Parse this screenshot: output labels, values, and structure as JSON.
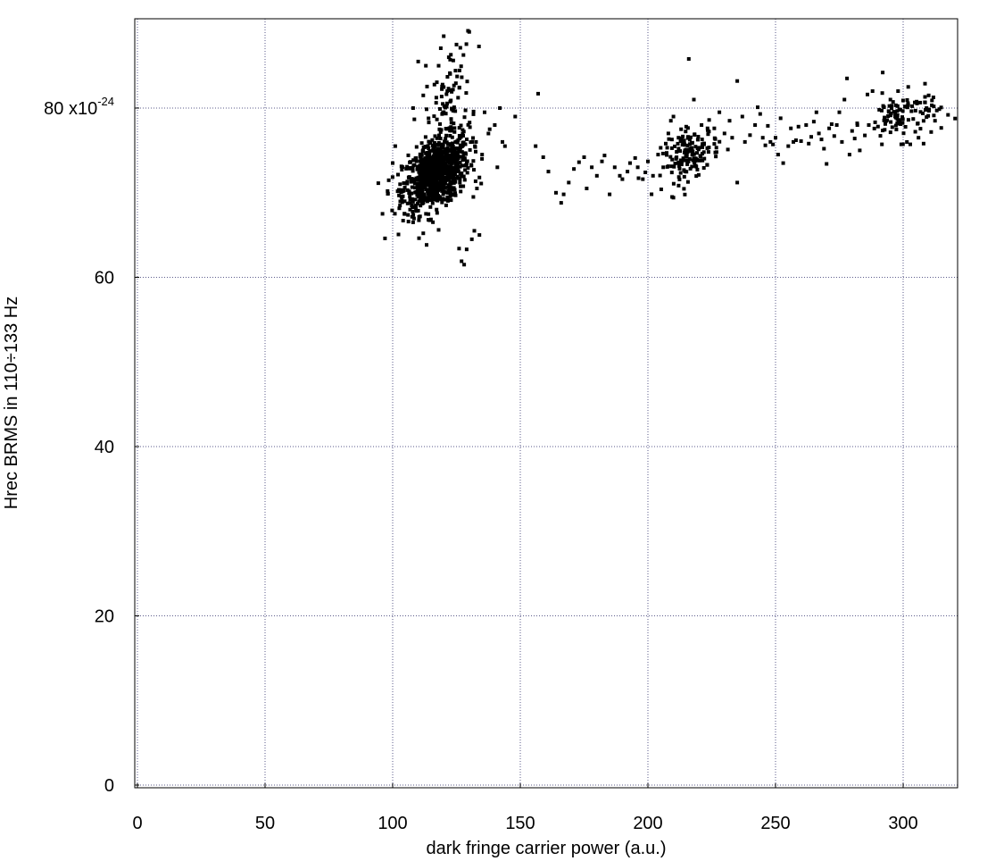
{
  "chart_data": {
    "type": "scatter",
    "title": "",
    "xlabel": "dark fringe carrier power (a.u.)",
    "ylabel": "Hrec BRMS in 110÷133 Hz",
    "y_tick_labels": [
      {
        "value": 0,
        "label": "0"
      },
      {
        "value": 20,
        "label": "20"
      },
      {
        "value": 40,
        "label": "40"
      },
      {
        "value": 60,
        "label": "60"
      },
      {
        "value": 80,
        "label": "80 x10",
        "exponent": "-24"
      }
    ],
    "x_tick_labels": [
      {
        "value": 0,
        "label": "0"
      },
      {
        "value": 50,
        "label": "50"
      },
      {
        "value": 100,
        "label": "100"
      },
      {
        "value": 150,
        "label": "150"
      },
      {
        "value": 200,
        "label": "200"
      },
      {
        "value": 250,
        "label": "250"
      },
      {
        "value": 300,
        "label": "300"
      }
    ],
    "xlim": [
      0,
      322
    ],
    "ylim": [
      0,
      90.5
    ],
    "y_scale": "1e-24",
    "grid": true,
    "marker_color": "#000000",
    "grid_color": "#5a5a8a",
    "clusters": [
      {
        "cx": 117,
        "cy": 72.3,
        "sx": 6.5,
        "sy": 2.2,
        "n": 900,
        "rho": 0.45
      },
      {
        "cx": 122,
        "cy": 80.5,
        "sx": 4.5,
        "sy": 3.5,
        "n": 90,
        "rho": 0.3
      },
      {
        "cx": 217,
        "cy": 74.5,
        "sx": 5.5,
        "sy": 1.6,
        "n": 150,
        "rho": 0.5
      },
      {
        "cx": 300,
        "cy": 79.0,
        "sx": 7.5,
        "sy": 1.4,
        "n": 110,
        "rho": 0.2
      }
    ],
    "points": [
      [
        97,
        64.6
      ],
      [
        101,
        75.5
      ],
      [
        100,
        73.5
      ],
      [
        96,
        67.5
      ],
      [
        98,
        70.2
      ],
      [
        108,
        66.5
      ],
      [
        112,
        65.2
      ],
      [
        114,
        66.8
      ],
      [
        118,
        65.6
      ],
      [
        126,
        63.4
      ],
      [
        129,
        63.3
      ],
      [
        127,
        61.9
      ],
      [
        128,
        61.5
      ],
      [
        132,
        65.5
      ],
      [
        134,
        65.0
      ],
      [
        131,
        64.5
      ],
      [
        141,
        73.0
      ],
      [
        143,
        76.0
      ],
      [
        144,
        75.5
      ],
      [
        142,
        80.0
      ],
      [
        140,
        78.0
      ],
      [
        136,
        79.5
      ],
      [
        120,
        88.5
      ],
      [
        122,
        86.0
      ],
      [
        118,
        85.0
      ],
      [
        113,
        85.0
      ],
      [
        110,
        85.5
      ],
      [
        112,
        81.5
      ],
      [
        108,
        80.0
      ],
      [
        130,
        89.0
      ],
      [
        125,
        87.5
      ],
      [
        138,
        77.5
      ],
      [
        135,
        74.0
      ],
      [
        134,
        71.8
      ],
      [
        133,
        70.5
      ],
      [
        148,
        79.0
      ],
      [
        157,
        81.7
      ],
      [
        156,
        75.5
      ],
      [
        159,
        74.2
      ],
      [
        161,
        72.5
      ],
      [
        164,
        70.0
      ],
      [
        166,
        68.8
      ],
      [
        167,
        69.8
      ],
      [
        169,
        71.2
      ],
      [
        171,
        72.8
      ],
      [
        173,
        73.6
      ],
      [
        175,
        74.2
      ],
      [
        176,
        70.5
      ],
      [
        178,
        73.0
      ],
      [
        180,
        72.0
      ],
      [
        182,
        73.7
      ],
      [
        183,
        74.4
      ],
      [
        185,
        69.8
      ],
      [
        187,
        73.0
      ],
      [
        189,
        72.0
      ],
      [
        190,
        71.6
      ],
      [
        192,
        72.5
      ],
      [
        193,
        73.5
      ],
      [
        195,
        74.1
      ],
      [
        196,
        73.0
      ],
      [
        198,
        71.6
      ],
      [
        199,
        72.4
      ],
      [
        200,
        73.7
      ],
      [
        202,
        72.0
      ],
      [
        204,
        74.5
      ],
      [
        205,
        75.3
      ],
      [
        206,
        73.0
      ],
      [
        207,
        75.8
      ],
      [
        208,
        77.0
      ],
      [
        209,
        78.5
      ],
      [
        210,
        79.0
      ],
      [
        211,
        74.0
      ],
      [
        212,
        76.5
      ],
      [
        213,
        77.5
      ],
      [
        214,
        76.0
      ],
      [
        215,
        77.8
      ],
      [
        216,
        85.8
      ],
      [
        218,
        81.0
      ],
      [
        221,
        78.0
      ],
      [
        224,
        78.6
      ],
      [
        226,
        77.6
      ],
      [
        228,
        79.5
      ],
      [
        230,
        77.0
      ],
      [
        232,
        78.5
      ],
      [
        233,
        76.5
      ],
      [
        235,
        83.2
      ],
      [
        235,
        71.2
      ],
      [
        237,
        79.0
      ],
      [
        238,
        76.0
      ],
      [
        240,
        76.8
      ],
      [
        242,
        78.0
      ],
      [
        243,
        80.1
      ],
      [
        244,
        79.3
      ],
      [
        245,
        76.5
      ],
      [
        246,
        75.6
      ],
      [
        247,
        77.9
      ],
      [
        248,
        76.0
      ],
      [
        249,
        75.7
      ],
      [
        250,
        76.5
      ],
      [
        251,
        74.5
      ],
      [
        252,
        78.8
      ],
      [
        253,
        73.5
      ],
      [
        255,
        75.5
      ],
      [
        256,
        77.6
      ],
      [
        257,
        76.0
      ],
      [
        258,
        76.2
      ],
      [
        259,
        77.8
      ],
      [
        260,
        76.1
      ],
      [
        262,
        78.0
      ],
      [
        263,
        75.8
      ],
      [
        264,
        76.6
      ],
      [
        265,
        78.4
      ],
      [
        266,
        79.5
      ],
      [
        267,
        77.0
      ],
      [
        268,
        76.3
      ],
      [
        269,
        75.2
      ],
      [
        270,
        73.4
      ],
      [
        271,
        77.6
      ],
      [
        272,
        78.1
      ],
      [
        273,
        76.7
      ],
      [
        274,
        78.0
      ],
      [
        275,
        79.5
      ],
      [
        276,
        76.0
      ],
      [
        277,
        81.0
      ],
      [
        278,
        83.5
      ],
      [
        279,
        74.5
      ],
      [
        280,
        77.3
      ],
      [
        281,
        76.4
      ],
      [
        282,
        78.2
      ],
      [
        283,
        75.0
      ],
      [
        286,
        81.6
      ],
      [
        288,
        82.0
      ],
      [
        292,
        84.2
      ],
      [
        295,
        81.0
      ],
      [
        302,
        82.5
      ],
      [
        308,
        75.8
      ],
      [
        312,
        80.2
      ],
      [
        310,
        81.5
      ],
      [
        306,
        76.5
      ],
      [
        298,
        82.0
      ]
    ]
  }
}
